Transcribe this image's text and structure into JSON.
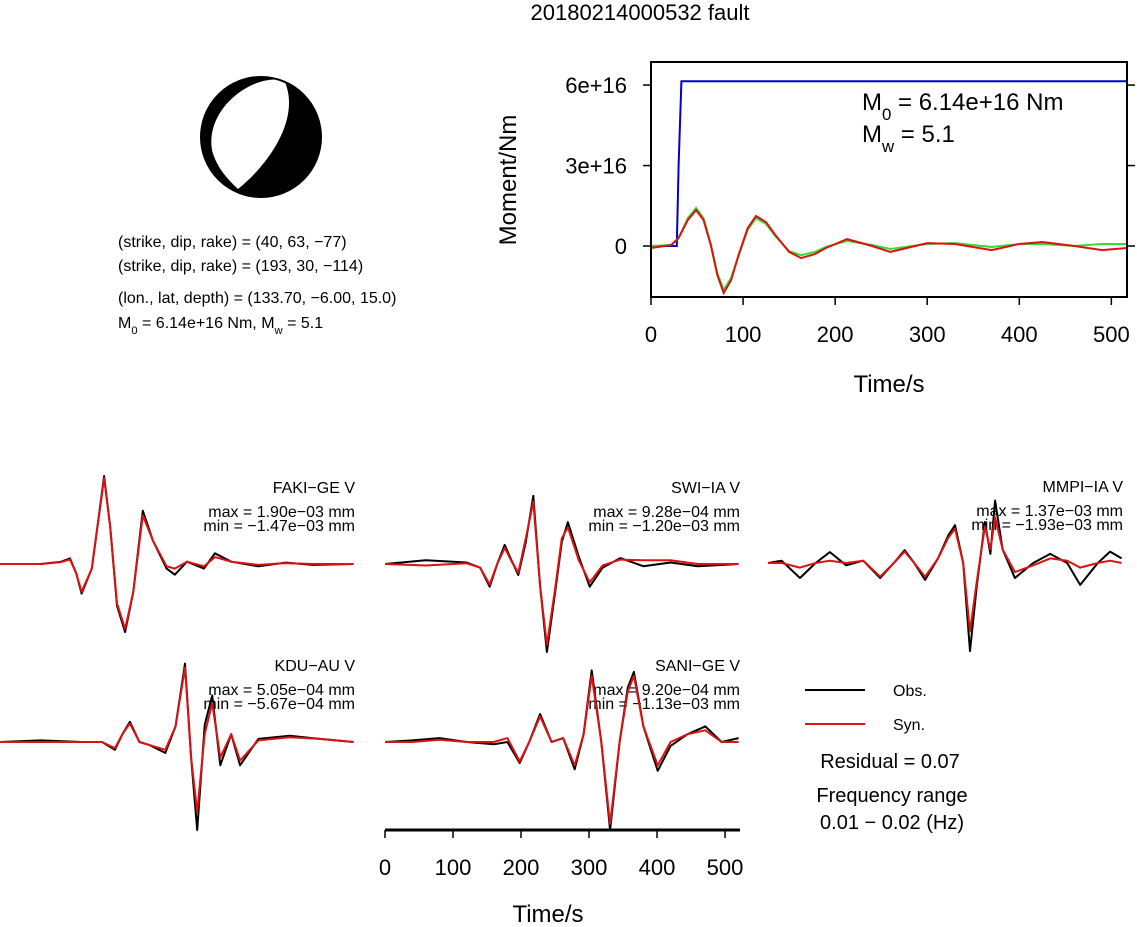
{
  "title": "20180214000532 fault",
  "mechanism": {
    "lines": [
      "(strike, dip, rake) = (40, 63, −77)",
      "(strike, dip, rake) = (193, 30, −114)",
      "(lon., lat, depth) = (133.70, −6.00, 15.0)"
    ],
    "moment_line": [
      {
        "text": "M"
      },
      {
        "sub": "0"
      },
      {
        "text": " = 6.14e+16 Nm, M"
      },
      {
        "sub": "w"
      },
      {
        "text": " = 5.1"
      }
    ]
  },
  "chart_data": [
    {
      "type": "line",
      "xlabel": "Time/s",
      "ylabel": "Moment/Nm",
      "xlim": [
        0,
        517
      ],
      "xticks": [
        0,
        100,
        200,
        300,
        400,
        500
      ],
      "ylim": [
        -1.9e+16,
        6.86e+16
      ],
      "yticks": [
        0,
        {
          "value": 3e+16,
          "label": "3e+16"
        },
        {
          "value": 6e+16,
          "label": "6e+16"
        }
      ],
      "annotations": [
        [
          {
            "text": "M"
          },
          {
            "sub": "0"
          },
          {
            "text": " = 6.14e+16 Nm"
          }
        ],
        [
          {
            "text": "M"
          },
          {
            "sub": "w"
          },
          {
            "text": " = 5.1"
          }
        ]
      ],
      "series": [
        {
          "color": "#0000cc",
          "x": [
            0,
            22,
            28,
            30,
            33,
            517
          ],
          "values": [
            0,
            0,
            0,
            3e+16,
            6.14e+16,
            6.14e+16
          ]
        },
        {
          "color": "#33dd33",
          "x": [
            0,
            22,
            30,
            40,
            49,
            57,
            65,
            72,
            79,
            87,
            95,
            105,
            114,
            125,
            135,
            150,
            163,
            178,
            190,
            213,
            240,
            260,
            300,
            330,
            370,
            400,
            425,
            460,
            490,
            517
          ],
          "values": [
            0,
            370000000000000.0,
            3000000000000000.0,
            1.04e+16,
            1.42e+16,
            1.04e+16,
            750000000000000.0,
            -1.01e+16,
            -1.64e+16,
            -1.19e+16,
            -3700000000000000.0,
            6000000000000000.0,
            1.04e+16,
            8200000000000000.0,
            3700000000000000.0,
            -1900000000000000.0,
            -3400000000000000.0,
            -2200000000000000.0,
            -370000000000000.0,
            1900000000000000.0,
            370000000000000.0,
            -1100000000000000.0,
            750000000000000.0,
            1100000000000000.0,
            -370000000000000.0,
            750000000000000.0,
            750000000000000.0,
            0,
            750000000000000.0,
            750000000000000.0
          ]
        },
        {
          "color": "#dd1111",
          "x": [
            0,
            22,
            30,
            40,
            49,
            57,
            65,
            72,
            79,
            87,
            95,
            105,
            114,
            125,
            135,
            150,
            163,
            178,
            190,
            213,
            240,
            260,
            300,
            330,
            370,
            400,
            425,
            460,
            490,
            517
          ],
          "values": [
            -750000000000000.0,
            370000000000000.0,
            3000000000000000.0,
            9700000000000000.0,
            1.34e+16,
            9700000000000000.0,
            370000000000000.0,
            -1.08e+16,
            -1.75e+16,
            -1.27e+16,
            -3400000000000000.0,
            6700000000000000.0,
            1.12e+16,
            8900000000000000.0,
            4100000000000000.0,
            -2200000000000000.0,
            -4500000000000000.0,
            -3000000000000000.0,
            -750000000000000.0,
            2600000000000000.0,
            0,
            -2200000000000000.0,
            1100000000000000.0,
            750000000000000.0,
            -1500000000000000.0,
            750000000000000.0,
            1500000000000000.0,
            0,
            -1500000000000000.0,
            -750000000000000.0
          ]
        }
      ]
    },
    {
      "type": "waveform",
      "title": "FAKI−GE V",
      "max_label": "max = 1.90e−03 mm",
      "min_label": "min = −1.47e−03 mm",
      "x": [
        0,
        60,
        90,
        103,
        112,
        120,
        135,
        145,
        153,
        162,
        172,
        184,
        196,
        210,
        225,
        245,
        257,
        275,
        300,
        316,
        340,
        380,
        420,
        460,
        520
      ],
      "series": [
        {
          "name": "Obs.",
          "color": "#000000",
          "values": [
            0,
            0,
            5e-05,
            0.00012,
            -0.0002,
            -0.00064,
            -0.0001,
            0.001,
            0.0019,
            0.0008,
            -0.0009,
            -0.00147,
            -0.0006,
            0.00115,
            0.0005,
            -0.0001,
            -0.00023,
            5e-05,
            -0.0001,
            0.00023,
            5e-05,
            -5e-05,
            3e-05,
            -2e-05,
            0
          ]
        },
        {
          "name": "Syn.",
          "color": "#dd1111",
          "values": [
            0,
            0,
            4e-05,
            0.0001,
            -0.0002,
            -0.0006,
            -0.0001,
            0.00098,
            0.00185,
            0.0008,
            -0.00085,
            -0.0014,
            -0.0006,
            0.00105,
            0.0005,
            -5e-05,
            -0.0001,
            5e-05,
            -5e-05,
            0.00015,
            5e-05,
            -2e-05,
            2e-05,
            0,
            0
          ]
        }
      ]
    },
    {
      "type": "waveform",
      "title": "SWI−IA V",
      "max_label": "max = 9.28e−04 mm",
      "min_label": "min = −1.20e−03 mm",
      "x": [
        0,
        60,
        120,
        140,
        154,
        165,
        176,
        186,
        196,
        207,
        218,
        228,
        238,
        250,
        260,
        269,
        285,
        301,
        320,
        346,
        380,
        420,
        460,
        520
      ],
      "series": [
        {
          "name": "Obs.",
          "color": "#000000",
          "values": [
            0,
            5e-05,
            2e-05,
            -5e-05,
            -0.00031,
            0,
            0.00026,
            5e-05,
            -0.00015,
            0.0003,
            0.000928,
            -0.0003,
            -0.0012,
            -0.0004,
            0.0003,
            0.00057,
            0.0001,
            -0.00031,
            -5e-05,
            8e-05,
            -3e-05,
            2e-05,
            -3e-05,
            0
          ]
        },
        {
          "name": "Syn.",
          "color": "#dd1111",
          "values": [
            0,
            -2e-05,
            1e-05,
            -5e-05,
            -0.00028,
            0,
            0.00022,
            4e-05,
            -0.00012,
            0.00035,
            0.00085,
            -0.0003,
            -0.0011,
            -0.00035,
            0.00035,
            0.0005,
            5e-05,
            -0.00025,
            -2e-05,
            6e-05,
            5e-05,
            5e-05,
            0,
            0
          ]
        }
      ]
    },
    {
      "type": "waveform",
      "title": "MMPI−IA V",
      "max_label": "max = 1.37e−03 mm",
      "min_label": "min = −1.93e−03 mm",
      "x": [
        0,
        20,
        47,
        70,
        91,
        115,
        140,
        165,
        185,
        201,
        215,
        231,
        250,
        265,
        275,
        287,
        297,
        307,
        319,
        327,
        334,
        345,
        363,
        390,
        415,
        440,
        459,
        485,
        503,
        520
      ],
      "series": [
        {
          "name": "Obs.",
          "color": "#000000",
          "values": [
            0,
            5e-05,
            -0.00033,
            0,
            0.00024,
            -5e-05,
            5e-05,
            -0.00033,
            0,
            0.00028,
            0,
            -0.00037,
            0.0001,
            0.0006,
            0.00083,
            0,
            -0.00193,
            -0.0005,
            0.0009,
            0.0002,
            0.00137,
            0.0003,
            -0.00033,
            0,
            0.0002,
            0,
            -0.00048,
            0,
            0.00025,
            0.0001
          ]
        },
        {
          "name": "Syn.",
          "color": "#dd1111",
          "values": [
            0,
            0,
            -0.0001,
            0,
            5e-05,
            0,
            5e-05,
            -0.0003,
            0,
            0.00025,
            0,
            -0.0003,
            0.0001,
            0.00055,
            0.00075,
            0,
            -0.0015,
            -0.0004,
            0.0008,
            0.0003,
            0.001,
            0.0003,
            -0.0002,
            -5e-05,
            0.0001,
            5e-05,
            -0.0001,
            0,
            5e-05,
            0
          ]
        }
      ]
    },
    {
      "type": "waveform",
      "title": "KDU−AU V",
      "max_label": "max = 5.05e−04 mm",
      "min_label": "min = −5.67e−04 mm",
      "x": [
        0,
        60,
        120,
        150,
        169,
        180,
        191,
        205,
        220,
        243,
        258,
        272,
        281,
        290,
        301,
        312,
        324,
        340,
        353,
        380,
        426,
        470,
        520
      ],
      "series": [
        {
          "name": "Obs.",
          "color": "#000000",
          "values": [
            0,
            1e-05,
            0,
            0,
            -5e-05,
            5e-05,
            0.00013,
            0,
            -2e-05,
            -7e-05,
            0.0001,
            0.000505,
            -0.0001,
            -0.000567,
            0.00011,
            0.0003,
            -0.00015,
            5e-05,
            -0.00015,
            2e-05,
            4e-05,
            2e-05,
            0
          ]
        },
        {
          "name": "Syn.",
          "color": "#dd1111",
          "values": [
            0,
            0,
            0,
            0,
            -4e-05,
            5e-05,
            0.00012,
            0,
            -2e-05,
            -5e-05,
            0.0001,
            0.00048,
            -0.0001,
            -0.00045,
            5e-05,
            0.00025,
            -0.0001,
            5e-05,
            -0.00012,
            1e-05,
            3e-05,
            2e-05,
            0
          ]
        }
      ]
    },
    {
      "type": "waveform",
      "title": "SANI−GE V",
      "max_label": "max = 9.20e−04 mm",
      "min_label": "min = −1.13e−03 mm",
      "xlabel": "Time/s",
      "xlim": [
        0,
        522
      ],
      "xticks": [
        0,
        100,
        200,
        300,
        400,
        500
      ],
      "x": [
        0,
        40,
        80,
        120,
        160,
        180,
        198,
        212,
        228,
        245,
        262,
        279,
        292,
        304,
        318,
        331,
        345,
        357,
        366,
        380,
        401,
        420,
        445,
        471,
        495,
        520
      ],
      "series": [
        {
          "name": "Obs.",
          "color": "#000000",
          "values": [
            0,
            2e-05,
            5e-05,
            0,
            -3e-05,
            0,
            -0.00027,
            0,
            0.00036,
            0,
            5e-05,
            -0.00035,
            0.0001,
            0.00092,
            0,
            -0.00113,
            0,
            0.0007,
            0.0009,
            0.0002,
            -0.00037,
            -5e-05,
            0.0001,
            0.0002,
            0,
            5e-05
          ]
        },
        {
          "name": "Syn.",
          "color": "#dd1111",
          "values": [
            0,
            0,
            3e-05,
            0,
            0,
            5e-05,
            -0.00025,
            0,
            0.00033,
            0,
            5e-05,
            -0.0003,
            0.0001,
            0.00085,
            0,
            -0.00105,
            0,
            0.00065,
            0.00085,
            0.0002,
            -0.0003,
            0,
            0.0001,
            0.00015,
            0,
            0
          ]
        }
      ]
    }
  ],
  "residual": "Residual = 0.07",
  "frequency_label": "Frequency range",
  "frequency": "0.01 − 0.02 (Hz)"
}
